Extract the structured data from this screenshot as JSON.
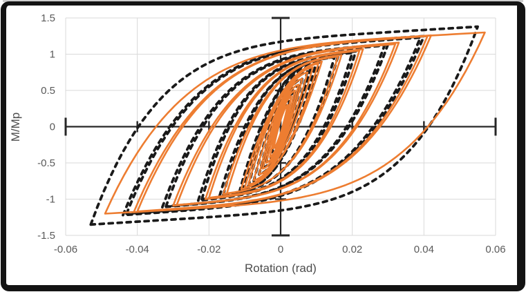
{
  "window": {
    "frame_color": "#131313",
    "background": "#ffffff"
  },
  "chart_data": {
    "type": "line",
    "subtype": "hysteresis-loops",
    "title": "",
    "xlabel": "Rotation (rad)",
    "ylabel": "M/Mp",
    "xlim": [
      -0.06,
      0.06
    ],
    "ylim": [
      -1.5,
      1.5
    ],
    "grid": true,
    "legend_position": "none",
    "axes_cross_at_zero": true,
    "xticks": {
      "values": [
        -0.06,
        -0.04,
        -0.02,
        0,
        0.02,
        0.04,
        0.06
      ],
      "labels": [
        "-0.06",
        "-0.04",
        "-0.02",
        "0",
        "0.02",
        "0.04",
        "0.06"
      ]
    },
    "yticks": {
      "values": [
        -1.5,
        -1,
        -0.5,
        0,
        0.5,
        1,
        1.5
      ],
      "labels": [
        "-1.5",
        "-1",
        "-0.5",
        "0",
        "0.5",
        "1",
        "1.5"
      ]
    },
    "colors": {
      "gridline": "#d9d9d9",
      "axis_line": "#262626",
      "tick_label": "#595959",
      "axis_title": "#4d4d4d",
      "series_dashed": "#1a1a1a",
      "series_solid": "#ed7d31"
    },
    "loop_model": {
      "branch_fn": "y(u) = y_start + y_span * (0.88*(1-(1-u)^beta) + 0.12*u); upper branch from (-an,-pn) to (ap,pp), lower branch point-symmetric",
      "blend": 0.12,
      "points_per_branch": 60
    },
    "series": [
      {
        "name": "black-dashed-loops",
        "color": "#1a1a1a",
        "stroke_width": 3.8,
        "dash": "6 7",
        "cycles": [
          {
            "an": 0.0025,
            "ap": 0.0025,
            "pn": 0.35,
            "pp": 0.35,
            "beta": 1.8
          },
          {
            "an": 0.004,
            "ap": 0.004,
            "pn": 0.48,
            "pp": 0.48,
            "beta": 1.9
          },
          {
            "an": 0.005,
            "ap": 0.005,
            "pn": 0.57,
            "pp": 0.57,
            "beta": 2.0
          },
          {
            "an": 0.006,
            "ap": 0.006,
            "pn": 0.66,
            "pp": 0.66,
            "beta": 2.0
          },
          {
            "an": 0.0075,
            "ap": 0.0075,
            "pn": 0.75,
            "pp": 0.76,
            "beta": 2.1
          },
          {
            "an": 0.009,
            "ap": 0.0085,
            "pn": 0.82,
            "pp": 0.84,
            "beta": 2.2
          },
          {
            "an": 0.0105,
            "ap": 0.01,
            "pn": 0.88,
            "pp": 0.9,
            "beta": 2.4
          },
          {
            "an": 0.0115,
            "ap": 0.011,
            "pn": 0.9,
            "pp": 0.93,
            "beta": 2.4
          },
          {
            "an": 0.016,
            "ap": 0.015,
            "pn": 0.94,
            "pp": 0.96,
            "beta": 3.2
          },
          {
            "an": 0.017,
            "ap": 0.016,
            "pn": 0.95,
            "pp": 0.97,
            "beta": 3.2
          },
          {
            "an": 0.022,
            "ap": 0.02,
            "pn": 1.0,
            "pp": 1.02,
            "beta": 3.8
          },
          {
            "an": 0.023,
            "ap": 0.021,
            "pn": 1.02,
            "pp": 1.04,
            "beta": 3.8
          },
          {
            "an": 0.032,
            "ap": 0.029,
            "pn": 1.1,
            "pp": 1.12,
            "beta": 4.2
          },
          {
            "an": 0.033,
            "ap": 0.03,
            "pn": 1.11,
            "pp": 1.14,
            "beta": 4.2
          },
          {
            "an": 0.043,
            "ap": 0.039,
            "pn": 1.2,
            "pp": 1.23,
            "beta": 4.6
          },
          {
            "an": 0.044,
            "ap": 0.04,
            "pn": 1.22,
            "pp": 1.25,
            "beta": 4.6
          },
          {
            "an": 0.053,
            "ap": 0.055,
            "pn": 1.35,
            "pp": 1.38,
            "beta": 6.0
          }
        ]
      },
      {
        "name": "orange-solid-loops",
        "color": "#ed7d31",
        "stroke_width": 2.6,
        "dash": "",
        "cycles": [
          {
            "an": 0.002,
            "ap": 0.002,
            "pn": 0.3,
            "pp": 0.3,
            "beta": 1.6
          },
          {
            "an": 0.003,
            "ap": 0.003,
            "pn": 0.42,
            "pp": 0.42,
            "beta": 1.7
          },
          {
            "an": 0.004,
            "ap": 0.004,
            "pn": 0.5,
            "pp": 0.5,
            "beta": 1.8
          },
          {
            "an": 0.005,
            "ap": 0.005,
            "pn": 0.58,
            "pp": 0.58,
            "beta": 1.9
          },
          {
            "an": 0.006,
            "ap": 0.006,
            "pn": 0.66,
            "pp": 0.66,
            "beta": 2.0
          },
          {
            "an": 0.0075,
            "ap": 0.0075,
            "pn": 0.74,
            "pp": 0.75,
            "beta": 2.0
          },
          {
            "an": 0.009,
            "ap": 0.009,
            "pn": 0.8,
            "pp": 0.82,
            "beta": 2.1
          },
          {
            "an": 0.01,
            "ap": 0.0105,
            "pn": 0.84,
            "pp": 0.87,
            "beta": 2.2
          },
          {
            "an": 0.011,
            "ap": 0.0115,
            "pn": 0.86,
            "pp": 0.9,
            "beta": 2.2
          },
          {
            "an": 0.015,
            "ap": 0.016,
            "pn": 0.92,
            "pp": 0.97,
            "beta": 3.0
          },
          {
            "an": 0.016,
            "ap": 0.017,
            "pn": 0.93,
            "pp": 0.99,
            "beta": 3.0
          },
          {
            "an": 0.02,
            "ap": 0.022,
            "pn": 0.98,
            "pp": 1.05,
            "beta": 3.6
          },
          {
            "an": 0.021,
            "ap": 0.023,
            "pn": 1.0,
            "pp": 1.07,
            "beta": 3.6
          },
          {
            "an": 0.029,
            "ap": 0.032,
            "pn": 1.08,
            "pp": 1.14,
            "beta": 4.0
          },
          {
            "an": 0.03,
            "ap": 0.033,
            "pn": 1.09,
            "pp": 1.16,
            "beta": 4.0
          },
          {
            "an": 0.04,
            "ap": 0.041,
            "pn": 1.17,
            "pp": 1.25,
            "beta": 4.4
          },
          {
            "an": 0.041,
            "ap": 0.042,
            "pn": 1.18,
            "pp": 1.26,
            "beta": 4.4
          },
          {
            "an": 0.049,
            "ap": 0.057,
            "pn": 1.2,
            "pp": 1.3,
            "beta": 5.2
          }
        ]
      }
    ]
  }
}
